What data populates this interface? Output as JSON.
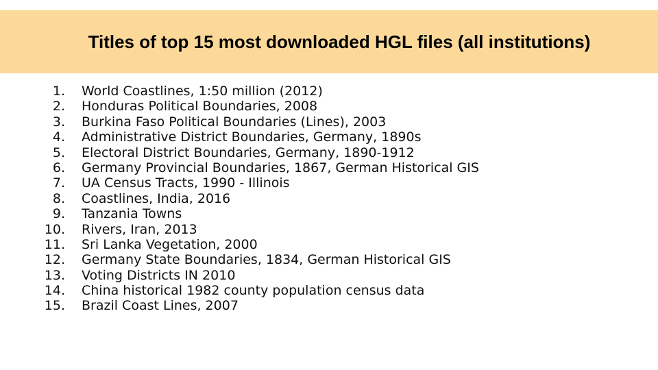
{
  "slide": {
    "title": "Titles of top 15 most downloaded HGL files (all institutions)",
    "items": [
      {
        "num": "1.",
        "text": "World Coastlines, 1:50 million (2012)"
      },
      {
        "num": "2.",
        "text": "Honduras Political Boundaries, 2008"
      },
      {
        "num": "3.",
        "text": "Burkina Faso Political Boundaries (Lines), 2003"
      },
      {
        "num": "4.",
        "text": "Administrative District Boundaries, Germany, 1890s"
      },
      {
        "num": "5.",
        "text": "Electoral District Boundaries, Germany, 1890-1912"
      },
      {
        "num": "6.",
        "text": "Germany Provincial Boundaries, 1867, German Historical GIS"
      },
      {
        "num": "7.",
        "text": "UA Census Tracts, 1990 - Illinois"
      },
      {
        "num": "8.",
        "text": "Coastlines, India, 2016"
      },
      {
        "num": "9.",
        "text": "Tanzania Towns"
      },
      {
        "num": "10.",
        "text": "Rivers, Iran, 2013"
      },
      {
        "num": "11.",
        "text": "Sri Lanka Vegetation, 2000"
      },
      {
        "num": "12.",
        "text": "Germany State Boundaries, 1834, German Historical GIS"
      },
      {
        "num": "13.",
        "text": "Voting Districts IN 2010"
      },
      {
        "num": "14.",
        "text": "China historical 1982 county population census data"
      },
      {
        "num": "15.",
        "text": "Brazil Coast Lines, 2007"
      }
    ]
  },
  "colors": {
    "title_band": "#fcd999",
    "background": "#ffffff",
    "text": "#111111"
  }
}
